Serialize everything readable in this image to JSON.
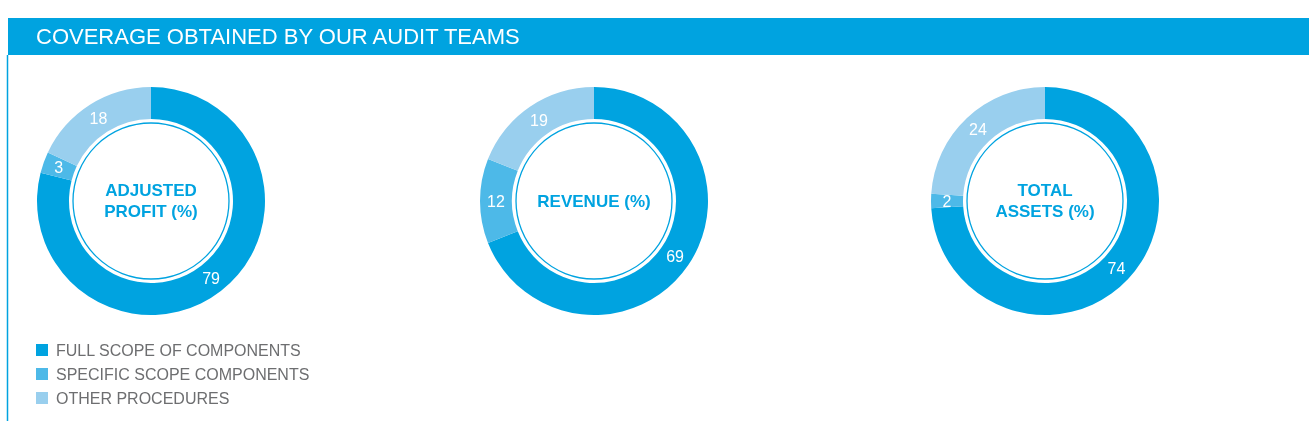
{
  "chart_data": [
    {
      "type": "other",
      "title": "COVERAGE OBTAINED BY OUR AUDIT TEAMS"
    },
    {
      "type": "donut",
      "title": "ADJUSTED PROFIT (%)",
      "categories": [
        "FULL SCOPE OF COMPONENTS",
        "SPECIFIC SCOPE COMPONENTS",
        "OTHER PROCEDURES"
      ],
      "values": [
        79,
        3,
        18
      ],
      "colors": [
        "#00a3e0",
        "#4db9e8",
        "#99cfee"
      ],
      "data_labels": true,
      "legend": "bottom"
    },
    {
      "type": "donut",
      "title": "REVENUE (%)",
      "categories": [
        null,
        null,
        null
      ],
      "values": [
        69,
        12,
        19
      ],
      "colors": [
        "#00a3e0",
        "#4db9e8",
        "#99cfee"
      ],
      "data_labels": true
    },
    {
      "type": "donut",
      "title": "TOTAL ASSETS (%)",
      "categories": [
        null,
        null,
        null
      ],
      "values": [
        74,
        2,
        24
      ],
      "colors": [
        "#00a3e0",
        "#4db9e8",
        "#99cfee"
      ],
      "data_labels": true
    }
  ]
}
